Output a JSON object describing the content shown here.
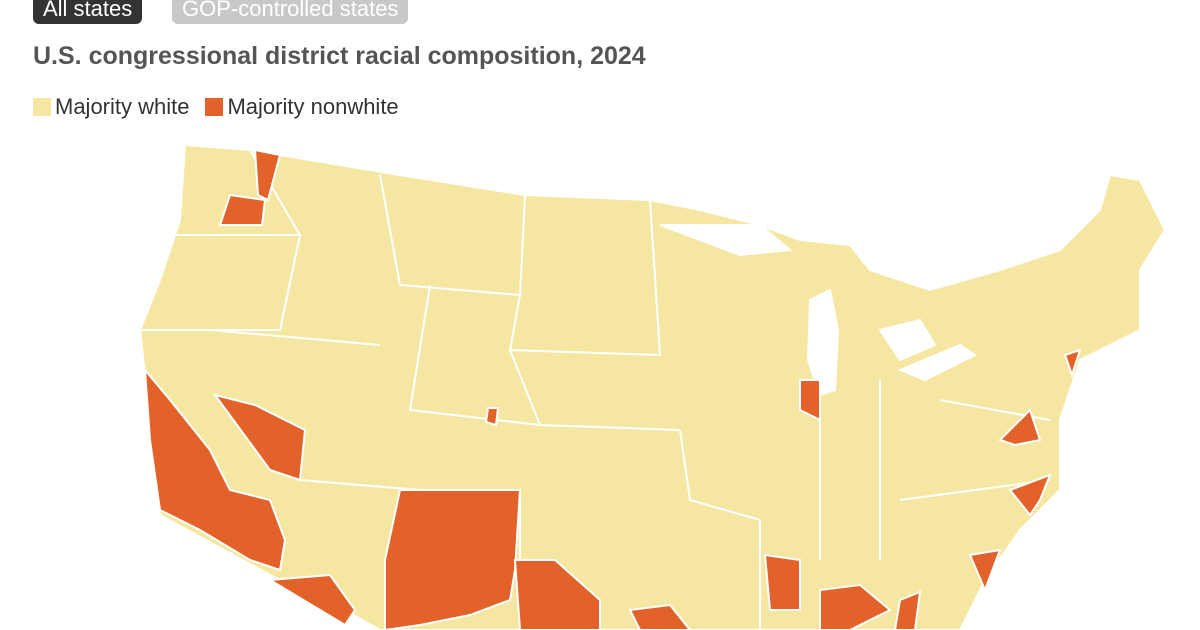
{
  "tabs": [
    "All states",
    "GOP-controlled states"
  ],
  "title": "U.S. congressional district racial composition, 2024",
  "legend": [
    {
      "label": "Majority white",
      "color": "#f5e7a2"
    },
    {
      "label": "Majority nonwhite",
      "color": "#e2622a"
    }
  ]
}
